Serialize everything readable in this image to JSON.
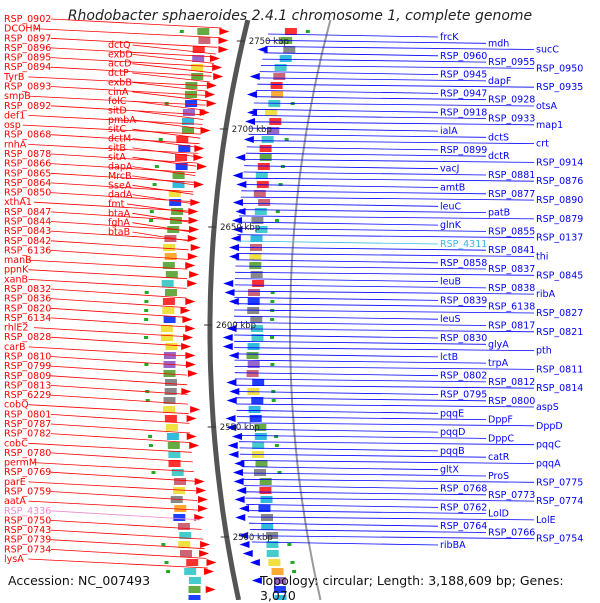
{
  "title": "Rhodobacter sphaeroides 2.4.1 chromosome 1, complete genome",
  "footer": {
    "accession": "Accession: NC_007493",
    "summary": "Topology: circular; Length: 3,188,609 bp; Genes: 3,070"
  },
  "colors": {
    "left_strand": "#ff0000",
    "right_strand": "#0000ff",
    "highlight_cyan": "#33bbdd",
    "highlight_pink": "#ee88cc",
    "backbone": "#777777"
  },
  "ticks": [
    "2750 kbp",
    "2700 kbp",
    "2650 kbp",
    "2600 kbp",
    "2550 kbp",
    "2500 kbp"
  ],
  "left_labels": [
    "RSP_0902",
    "DCOHM",
    "RSP_0897",
    "RSP_0896",
    "RSP_0895",
    "RSP_0894",
    "TyrB",
    "RSP_0893",
    "smpB",
    "RSP_0892",
    "def1",
    "osp",
    "RSP_0868",
    "rnhA",
    "RSP_0878",
    "RSP_0866",
    "RSP_0865",
    "RSP_0864",
    "RSP_0850",
    "xthA1",
    "RSP_0847",
    "RSP_0844",
    "RSP_0843",
    "RSP_0842",
    "RSP_6136",
    "manB",
    "ppnK",
    "xanB",
    "RSP_0832",
    "RSP_0836",
    "RSP_0820",
    "RSP_6134",
    "rhlE2",
    "RSP_0828",
    "carB",
    "RSP_0810",
    "RSP_0799",
    "RSP_0809",
    "RSP_0813",
    "RSP_6229",
    "cobQ",
    "RSP_0801",
    "RSP_0787",
    "RSP_0782",
    "cobC",
    "RSP_0780",
    "permM",
    "RSP_0769",
    "parE",
    "RSP_0759",
    "aatA",
    "RSP_4336",
    "RSP_0750",
    "RSP_0743",
    "RSP_0739",
    "RSP_0734",
    "lysA",
    "dctQ",
    "exbD",
    "accD",
    "dctP",
    "exbB",
    "cinA",
    "folC",
    "sitD",
    "pmbA",
    "sitC",
    "dctM",
    "sitB",
    "sitA",
    "dapA",
    "MrcB",
    "SseA",
    "dadA",
    "fmt",
    "btaA",
    "fghA",
    "btaB"
  ],
  "right_labels": [
    "frcK",
    "mdh",
    "sucC",
    "RSP_0960",
    "RSP_0955",
    "RSP_0950",
    "RSP_0945",
    "dapF",
    "RSP_0935",
    "RSP_0947",
    "RSP_0928",
    "otsA",
    "RSP_0918",
    "RSP_0933",
    "map1",
    "ialA",
    "dctS",
    "crt",
    "RSP_0899",
    "dctR",
    "RSP_0914",
    "vacJ",
    "RSP_0881",
    "RSP_0876",
    "amtB",
    "RSP_0877",
    "RSP_0890",
    "leuC",
    "patB",
    "RSP_0879",
    "glnK",
    "RSP_0855",
    "RSP_0137",
    "RSP_4311",
    "RSP_0841",
    "thi",
    "RSP_0858",
    "RSP_0837",
    "RSP_0845",
    "leuB",
    "RSP_0838",
    "ribA",
    "RSP_0839",
    "RSP_6138",
    "RSP_0827",
    "leuS",
    "RSP_0817",
    "RSP_0821",
    "RSP_0830",
    "glyA",
    "pth",
    "lctB",
    "trpA",
    "RSP_0811",
    "RSP_0802",
    "RSP_0812",
    "RSP_0814",
    "RSP_0795",
    "RSP_0800",
    "aspS",
    "pqqE",
    "DppF",
    "DppD",
    "pqqD",
    "DppC",
    "pqqC",
    "pqqB",
    "catR",
    "pqqA",
    "gltX",
    "ProS",
    "RSP_0775",
    "RSP_0768",
    "RSP_0773",
    "RSP_0774",
    "RSP_0762",
    "LolD",
    "LolE",
    "RSP_0764",
    "RSP_0766",
    "RSP_0754",
    "ribBA"
  ],
  "highlight_labels": [
    "RSP_4311",
    "RSP_4336"
  ]
}
